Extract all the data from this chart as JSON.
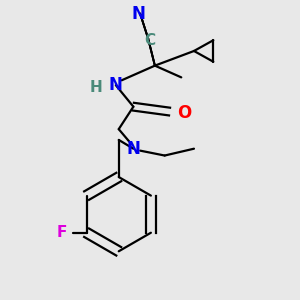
{
  "bg_color": "#e8e8e8",
  "atom_colors": {
    "N": "#0000ee",
    "O": "#ff0000",
    "F": "#dd00dd",
    "C_teal": "#4a8a7a",
    "H": "#4a8a7a"
  },
  "bond_color": "#000000",
  "line_width": 1.6,
  "font_size": 11
}
